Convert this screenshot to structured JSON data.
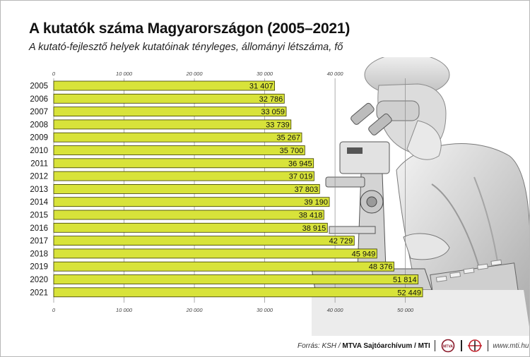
{
  "title": "A kutatók száma Magyarországon (2005–2021)",
  "subtitle": "A kutató-fejlesztő helyek kutatóinak tényleges, állományi létszáma, fő",
  "footer": {
    "source_prefix": "Forrás: KSH / ",
    "source_bold": "MTVA Sajtóarchívum / MTI",
    "url": "www.mti.hu"
  },
  "colors": {
    "bar": "#d8e33a",
    "bar_stroke": "#3a3a00",
    "grid": "#8a8a8a"
  },
  "icons": [
    "mtva-logo-icon",
    "mti-logo-icon",
    "laboratory-researcher-illustration"
  ],
  "chart_data": {
    "type": "bar",
    "orientation": "horizontal",
    "categories": [
      "2005",
      "2006",
      "2007",
      "2008",
      "2009",
      "2010",
      "2011",
      "2012",
      "2013",
      "2014",
      "2015",
      "2016",
      "2017",
      "2018",
      "2019",
      "2020",
      "2021"
    ],
    "values": [
      31407,
      32786,
      33059,
      33739,
      35267,
      35700,
      36945,
      37019,
      37803,
      39190,
      38418,
      38915,
      42729,
      45949,
      48376,
      51814,
      52449
    ],
    "value_labels": [
      "31 407",
      "32 786",
      "33 059",
      "33 739",
      "35 267",
      "35 700",
      "36 945",
      "37 019",
      "37 803",
      "39 190",
      "38 418",
      "38 915",
      "42 729",
      "45 949",
      "48 376",
      "51 814",
      "52 449"
    ],
    "top_ticks": [
      0,
      10000,
      20000,
      30000,
      40000
    ],
    "top_tick_labels": [
      "0",
      "10 000",
      "20 000",
      "30 000",
      "40 000"
    ],
    "bottom_ticks": [
      0,
      10000,
      20000,
      30000,
      40000,
      50000
    ],
    "bottom_tick_labels": [
      "0",
      "10 000",
      "20 000",
      "30 000",
      "40 000",
      "50 000"
    ],
    "xlim": [
      0,
      52449
    ],
    "grid": true
  }
}
